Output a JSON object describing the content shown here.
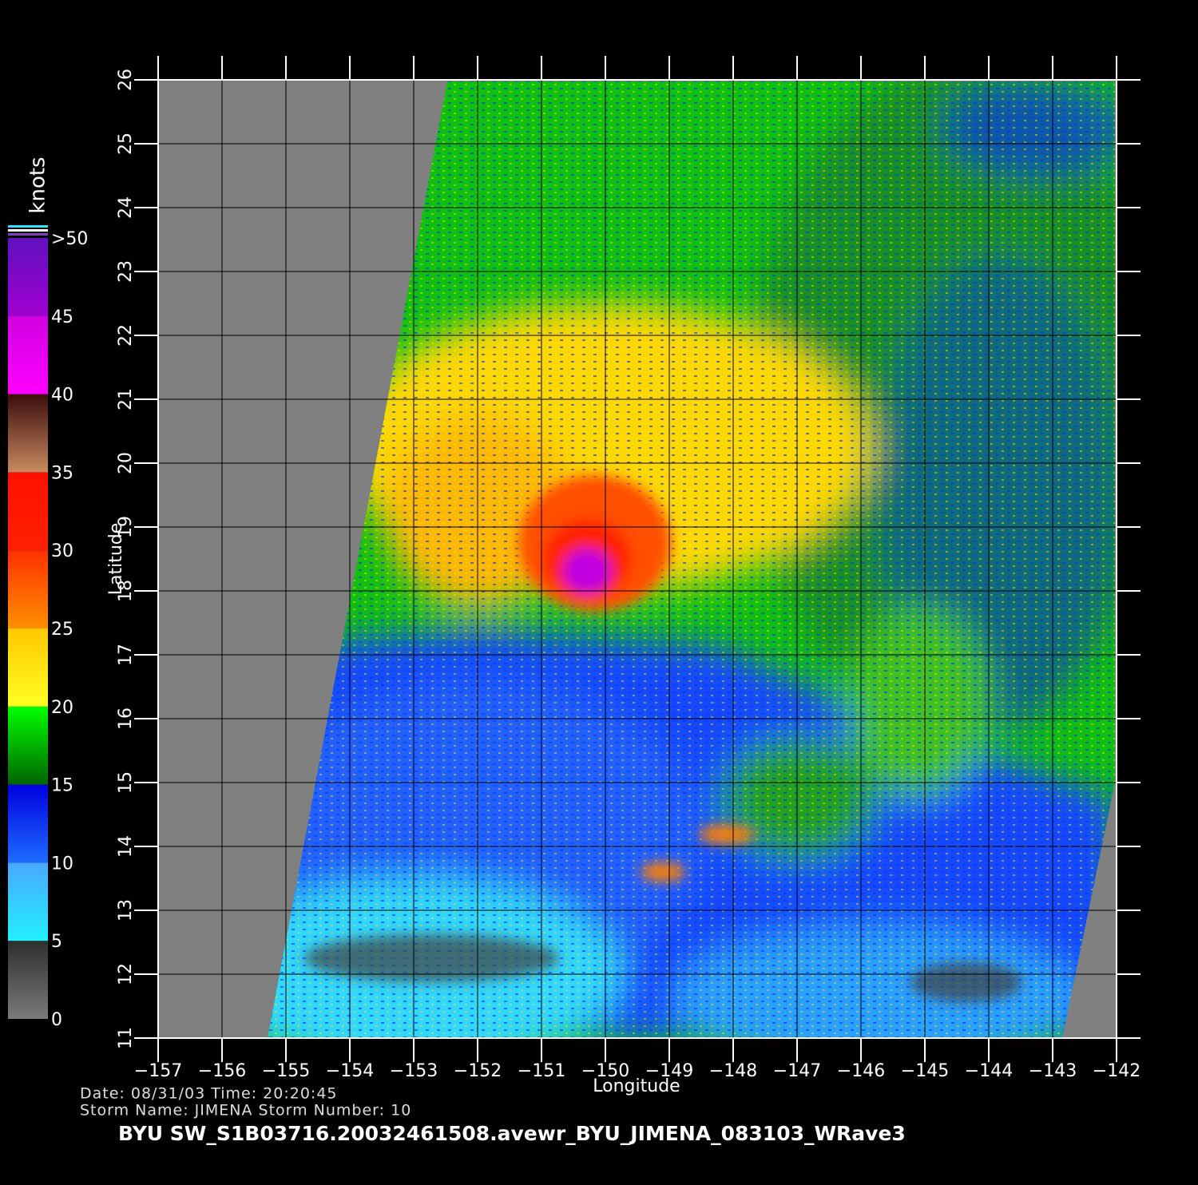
{
  "map": {
    "xlim": [
      -157,
      -142
    ],
    "ylim": [
      11,
      26
    ],
    "xticks": [
      {
        "value": -157,
        "label": "−157"
      },
      {
        "value": -156,
        "label": "−156"
      },
      {
        "value": -155,
        "label": "−155"
      },
      {
        "value": -154,
        "label": "−154"
      },
      {
        "value": -153,
        "label": "−153"
      },
      {
        "value": -152,
        "label": "−152"
      },
      {
        "value": -151,
        "label": "−151"
      },
      {
        "value": -150,
        "label": "−150"
      },
      {
        "value": -149,
        "label": "−149"
      },
      {
        "value": -148,
        "label": "−148"
      },
      {
        "value": -147,
        "label": "−147"
      },
      {
        "value": -146,
        "label": "−146"
      },
      {
        "value": -145,
        "label": "−145"
      },
      {
        "value": -144,
        "label": "−144"
      },
      {
        "value": -143,
        "label": "−143"
      },
      {
        "value": -142,
        "label": "−142"
      }
    ],
    "yticks": [
      11,
      12,
      13,
      14,
      15,
      16,
      17,
      18,
      19,
      20,
      21,
      22,
      23,
      24,
      25,
      26
    ],
    "x_label": "Longitude",
    "y_label": "Latitude",
    "grid": true
  },
  "colorbar": {
    "title": "knots",
    "lim": [
      0,
      50
    ],
    "ticks": [
      0,
      5,
      10,
      15,
      20,
      25,
      30,
      35,
      40,
      45,
      {
        "value": 50,
        "label": ">50"
      }
    ],
    "segments": [
      [
        "#7a7a7a",
        "#2e2e2e"
      ],
      [
        "#22f0ff",
        "#48a8ff"
      ],
      [
        "#1e6cff",
        "#0000e0"
      ],
      [
        "#006400",
        "#00ff00"
      ],
      [
        "#ffff20",
        "#ffc800"
      ],
      [
        "#ff9000",
        "#ff3000"
      ],
      [
        "#ff2000",
        "#ff1000"
      ],
      [
        "#c88a60",
        "#3a0c0c"
      ],
      [
        "#ff00ff",
        "#d000e0"
      ],
      [
        "#a000d0",
        "#6010c0"
      ]
    ]
  },
  "info": {
    "date_line": "Date: 08/31/03   Time: 20:20:45",
    "storm_line": "Storm  Name:  JIMENA    Storm  Number:  10",
    "title": "BYU  SW_S1B03716.20032461508.avewr_BYU_JIMENA_083103_WRave3"
  }
}
